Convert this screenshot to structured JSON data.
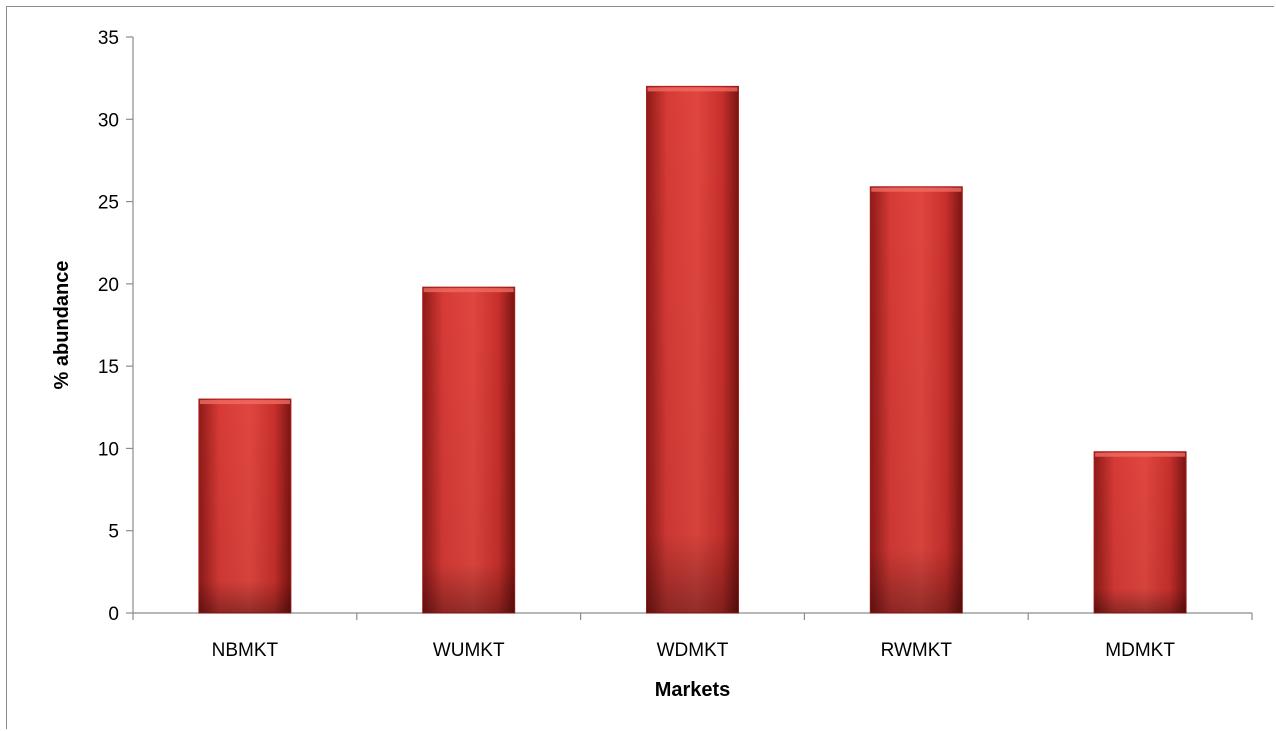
{
  "chart_data": {
    "type": "bar",
    "title": "",
    "xlabel": "Markets",
    "ylabel": "% abundance",
    "categories": [
      "NBMKT",
      "WUMKT",
      "WDMKT",
      "RWMKT",
      "MDMKT"
    ],
    "values": [
      13,
      19.8,
      32,
      25.9,
      9.8
    ],
    "ylim": [
      0,
      35
    ],
    "yticks": [
      0,
      5,
      10,
      15,
      20,
      25,
      30,
      35
    ],
    "ytick_labels": [
      "0",
      "5",
      "10",
      "15",
      "20",
      "25",
      "30",
      "35"
    ],
    "grid": false,
    "legend": "none",
    "bar_color": "#d63a36",
    "bar_edge_color": "#a8201d"
  }
}
